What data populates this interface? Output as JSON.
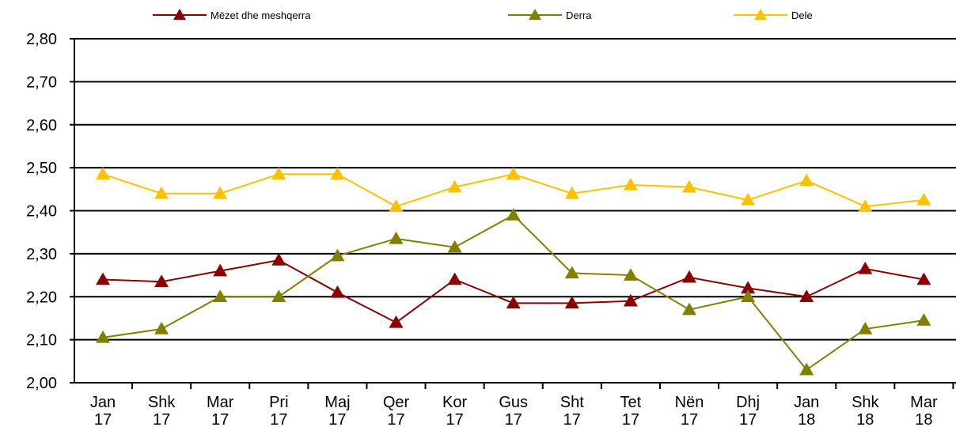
{
  "chart_data": {
    "type": "line",
    "title": "",
    "xlabel": "",
    "ylabel": "",
    "ylim": [
      2.0,
      2.8
    ],
    "yticks": [
      "2,00",
      "2,10",
      "2,20",
      "2,30",
      "2,40",
      "2,50",
      "2,60",
      "2,70",
      "2,80"
    ],
    "categories": [
      [
        "Jan",
        "17"
      ],
      [
        "Shk",
        "17"
      ],
      [
        "Mar",
        "17"
      ],
      [
        "Pri",
        "17"
      ],
      [
        "Maj",
        "17"
      ],
      [
        "Qer",
        "17"
      ],
      [
        "Kor",
        "17"
      ],
      [
        "Gus",
        "17"
      ],
      [
        "Sht",
        "17"
      ],
      [
        "Tet",
        "17"
      ],
      [
        "Nën",
        "17"
      ],
      [
        "Dhj",
        "17"
      ],
      [
        "Jan",
        "18"
      ],
      [
        "Shk",
        "18"
      ],
      [
        "Mar",
        "18"
      ]
    ],
    "grid": true,
    "legend_position": "top",
    "series": [
      {
        "name": "Mëzet dhe meshqerra",
        "color": "#8b0000",
        "marker": "triangle",
        "values": [
          2.24,
          2.235,
          2.26,
          2.285,
          2.21,
          2.14,
          2.24,
          2.185,
          2.185,
          2.19,
          2.245,
          2.22,
          2.2,
          2.265,
          2.24
        ]
      },
      {
        "name": "Derra",
        "color": "#808000",
        "marker": "triangle",
        "values": [
          2.105,
          2.125,
          2.2,
          2.2,
          2.295,
          2.335,
          2.315,
          2.39,
          2.255,
          2.25,
          2.17,
          2.2,
          2.03,
          2.125,
          2.145
        ]
      },
      {
        "name": "Dele",
        "color": "#ffc000",
        "marker": "triangle",
        "values": [
          2.485,
          2.44,
          2.44,
          2.485,
          2.485,
          2.41,
          2.455,
          2.485,
          2.44,
          2.46,
          2.455,
          2.425,
          2.47,
          2.41,
          2.425
        ]
      }
    ]
  }
}
